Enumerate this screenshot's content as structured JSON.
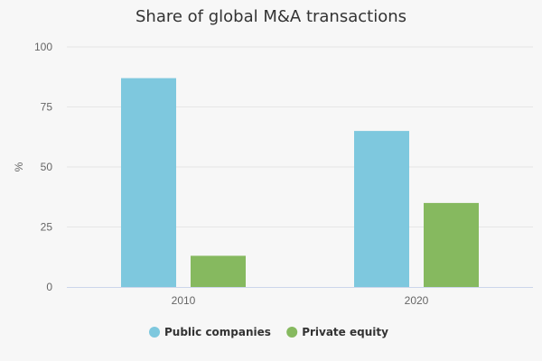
{
  "chart_data": {
    "type": "bar",
    "title": "Share of global M&A transactions",
    "xlabel": "",
    "ylabel": "%",
    "categories": [
      "2010",
      "2020"
    ],
    "ylim": [
      0,
      100
    ],
    "yticks": [
      0,
      25,
      50,
      75,
      100
    ],
    "grid": true,
    "legend_position": "bottom-center",
    "series": [
      {
        "name": "Public companies",
        "color": "#7ec8de",
        "values": [
          87,
          65
        ]
      },
      {
        "name": "Private equity",
        "color": "#86b95f",
        "values": [
          13,
          35
        ]
      }
    ]
  }
}
